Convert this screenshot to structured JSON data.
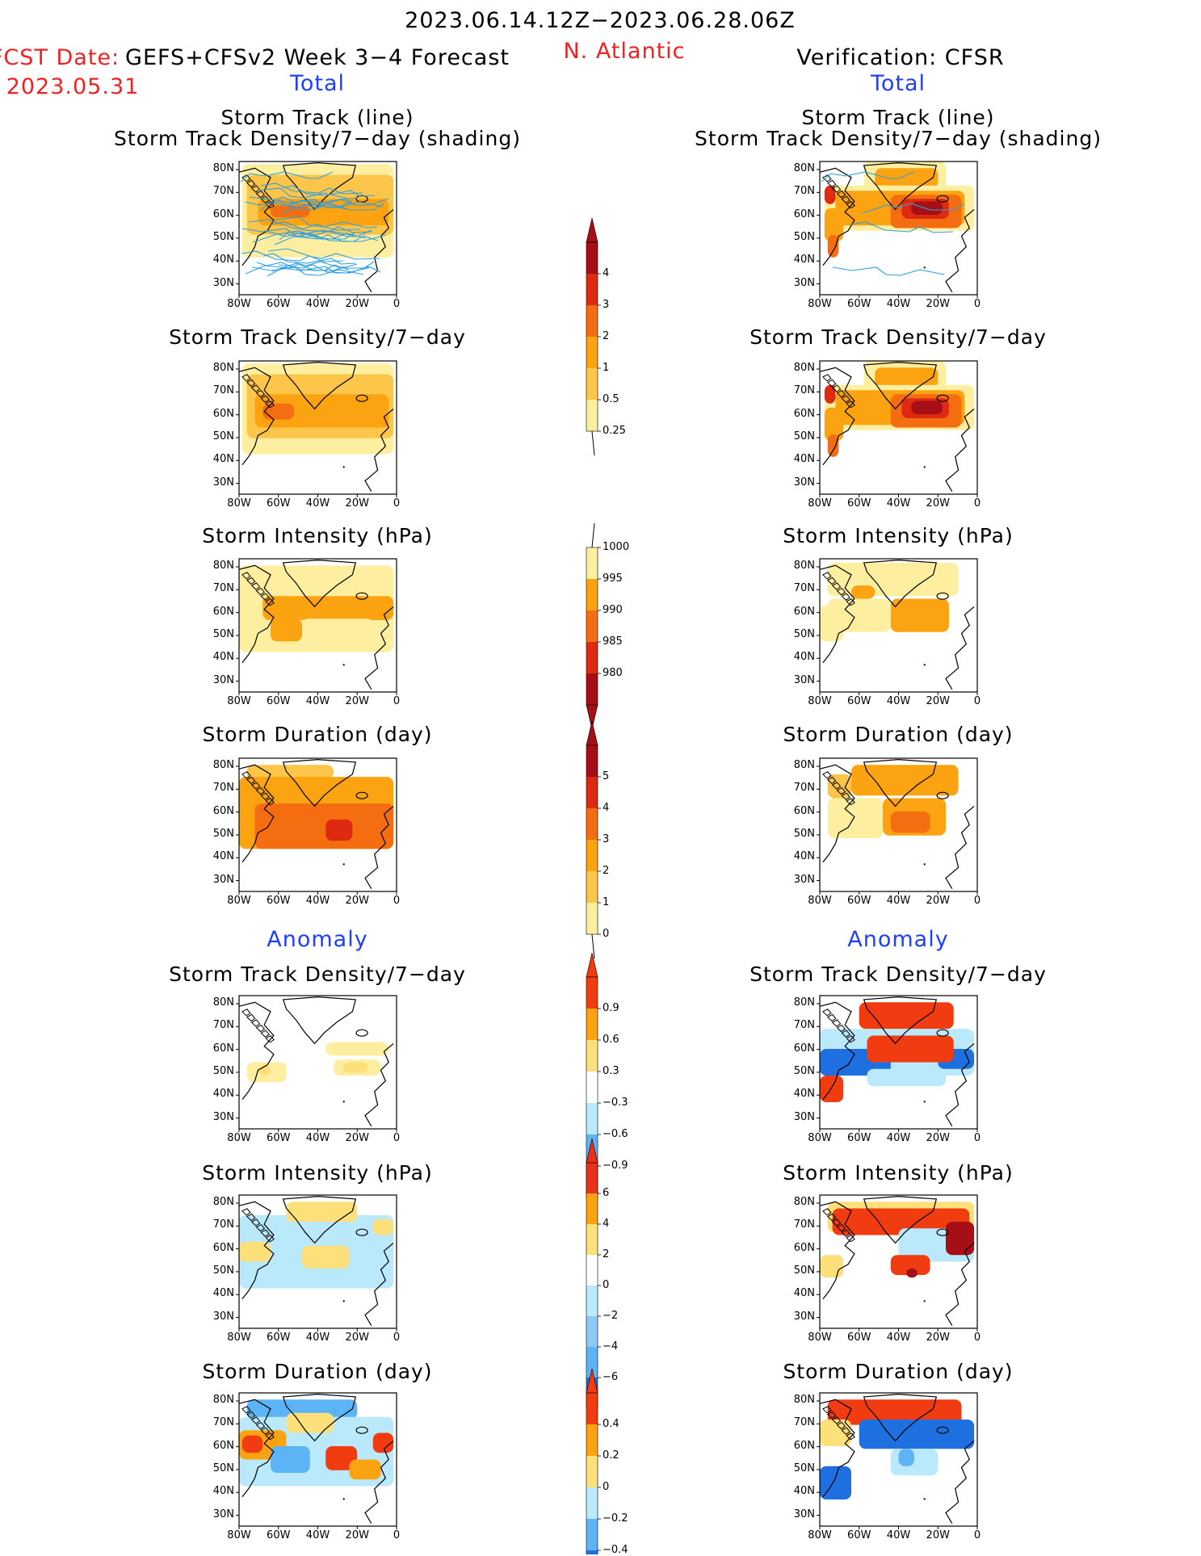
{
  "header": {
    "date_range": "2023.06.14.12Z−2023.06.28.06Z",
    "fcst_date_label": "FCST Date:",
    "fcst_date_value": "2023.05.31",
    "forecast_title": "GEFS+CFSv2 Week 3−4 Forecast",
    "region": "N. Atlantic",
    "verification_title": "Verification: CFSR",
    "left_total": "Total",
    "right_total": "Total",
    "left_anomaly": "Anomaly",
    "right_anomaly": "Anomaly"
  },
  "axes": {
    "lon_labels": [
      "80W",
      "60W",
      "40W",
      "20W",
      "0"
    ],
    "lat_labels": [
      "80N",
      "70N",
      "60N",
      "50N",
      "40N",
      "30N"
    ]
  },
  "panels": [
    {
      "title_lines": [
        "Storm Track (line)",
        "Storm Track Density/7−day (shading)"
      ],
      "field": "track_density_with_tracks"
    },
    {
      "title_lines": [
        "Storm Track Density/7−day"
      ],
      "field": "track_density"
    },
    {
      "title_lines": [
        "Storm Intensity (hPa)"
      ],
      "field": "intensity"
    },
    {
      "title_lines": [
        "Storm Duration (day)"
      ],
      "field": "duration"
    },
    {
      "title_lines": [
        "Storm Track Density/7−day"
      ],
      "field": "track_density_anomaly"
    },
    {
      "title_lines": [
        "Storm Intensity (hPa)"
      ],
      "field": "intensity_anomaly"
    },
    {
      "title_lines": [
        "Storm Duration (day)"
      ],
      "field": "duration_anomaly"
    }
  ],
  "colorbars": [
    {
      "name": "density",
      "labels": [
        "4",
        "3",
        "2",
        "1",
        "0.5",
        "0.25"
      ],
      "colors": [
        "#a50f15",
        "#dd2a10",
        "#f46d10",
        "#fca311",
        "#fdc64a",
        "#feefa0"
      ]
    },
    {
      "name": "intensity",
      "labels": [
        "1000",
        "995",
        "990",
        "985",
        "980"
      ],
      "colors": [
        "#feefa0",
        "#fca311",
        "#f46d10",
        "#dd2a10",
        "#a50f15"
      ]
    },
    {
      "name": "duration",
      "labels": [
        "5",
        "4",
        "3",
        "2",
        "1",
        "0"
      ],
      "colors": [
        "#a50f15",
        "#dd2a10",
        "#f46d10",
        "#fca311",
        "#fdc64a",
        "#feefa0"
      ]
    },
    {
      "name": "density_anomaly",
      "labels": [
        "0.9",
        "0.6",
        "0.3",
        "−0.3",
        "−0.6",
        "−0.9"
      ],
      "colors": [
        "#f03c10",
        "#fca311",
        "#fde07a",
        "#ffffff",
        "#b9e9fb",
        "#5cb4f5",
        "#1e6fe0"
      ]
    },
    {
      "name": "intensity_anomaly",
      "labels": [
        "6",
        "4",
        "2",
        "0",
        "−2",
        "−4",
        "−6"
      ],
      "colors": [
        "#e8301a",
        "#fca311",
        "#fde07a",
        "#ffffff",
        "#b9e9fb",
        "#8cc8f8",
        "#5cb4f5",
        "#1e6fe0"
      ]
    },
    {
      "name": "duration_anomaly",
      "labels": [
        "0.4",
        "0.2",
        "0",
        "−0.2",
        "−0.4"
      ],
      "colors": [
        "#f03c10",
        "#fca311",
        "#fde07a",
        "#b9e9fb",
        "#5cb4f5",
        "#1e6fe0"
      ]
    }
  ]
}
